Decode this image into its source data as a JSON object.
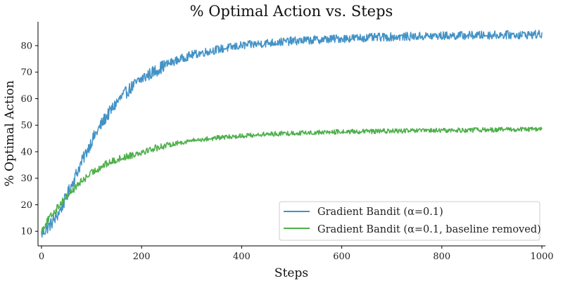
{
  "chart_data": {
    "type": "line",
    "title": "% Optimal Action vs. Steps",
    "xlabel": "Steps",
    "ylabel": "% Optimal Action",
    "xlim": [
      -7,
      1007
    ],
    "ylim": [
      4.5,
      89
    ],
    "xticks": [
      0,
      200,
      400,
      600,
      800,
      1000
    ],
    "yticks": [
      10,
      20,
      30,
      40,
      50,
      60,
      70,
      80
    ],
    "grid": false,
    "legend_position": "lower-right",
    "series": [
      {
        "name": "Gradient Bandit (α=0.1)",
        "color": "#4292c6",
        "x": [
          0,
          10,
          20,
          30,
          40,
          50,
          60,
          75,
          100,
          125,
          150,
          175,
          200,
          250,
          300,
          350,
          400,
          450,
          500,
          600,
          700,
          800,
          900,
          1000
        ],
        "y": [
          9,
          11,
          13,
          15.5,
          19,
          23,
          27.5,
          34,
          44,
          52,
          58.5,
          63.5,
          67.5,
          73,
          76.5,
          78.5,
          80,
          81,
          81.7,
          82.7,
          83.3,
          83.7,
          84,
          84.2
        ]
      },
      {
        "name": "Gradient Bandit (α=0.1, baseline removed)",
        "color": "#4daf4a",
        "x": [
          0,
          10,
          20,
          30,
          40,
          50,
          60,
          75,
          100,
          125,
          150,
          175,
          200,
          250,
          300,
          350,
          400,
          450,
          500,
          600,
          700,
          800,
          900,
          1000
        ],
        "y": [
          10,
          13.5,
          16,
          18.5,
          21,
          23,
          25,
          28,
          32,
          35,
          37,
          38.5,
          40,
          42.5,
          44.2,
          45.2,
          46,
          46.6,
          47,
          47.5,
          47.8,
          48,
          48.3,
          48.5
        ]
      }
    ]
  }
}
